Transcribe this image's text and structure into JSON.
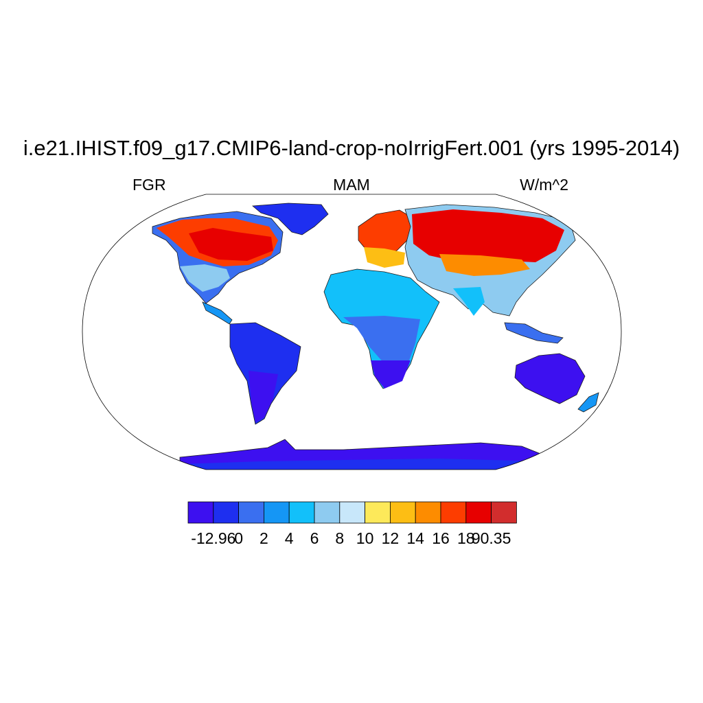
{
  "title": "i.e21.IHIST.f09_g17.CMIP6-land-crop-noIrrigFert.001 (yrs 1995-2014)",
  "left_string": "FGR",
  "center_string": "MAM",
  "right_string": "W/m^2",
  "colorbar": {
    "colors": [
      "#3d10f0",
      "#1e2ff0",
      "#3a6ff0",
      "#1596f5",
      "#12c0fa",
      "#8ecbf0",
      "#c8e7fa",
      "#fde95a",
      "#fdbe14",
      "#fd8c00",
      "#fd3d00",
      "#e70000",
      "#d22d2d"
    ],
    "labels": [
      "-12.96",
      "0",
      "2",
      "4",
      "6",
      "8",
      "10",
      "12",
      "14",
      "16",
      "18",
      "90.35"
    ]
  },
  "colors": {
    "ocean": "#ffffff",
    "coast": "#1a1a1a"
  }
}
